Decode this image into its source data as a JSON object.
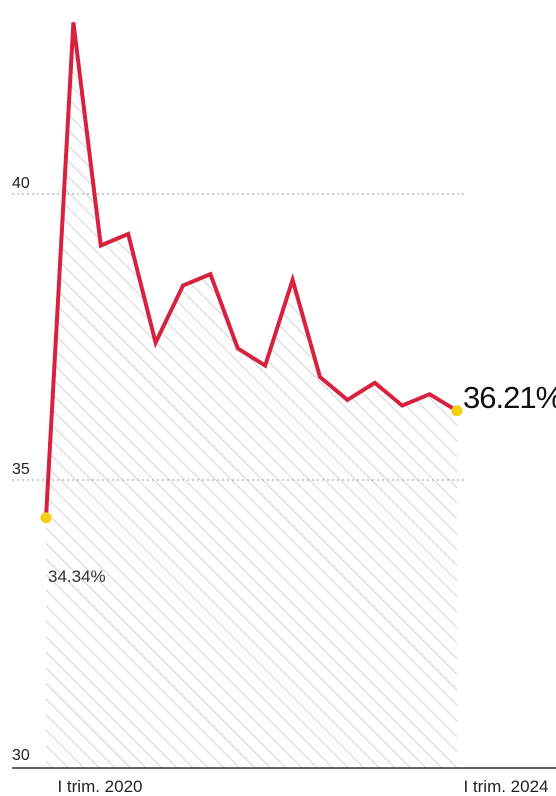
{
  "chart_data": {
    "type": "area",
    "x_start_label": "I trim. 2020",
    "x_end_label": "I trim. 2024",
    "y_ticks": [
      30,
      35,
      40
    ],
    "ylim": [
      30,
      43
    ],
    "values": [
      34.34,
      43.0,
      39.1,
      39.3,
      37.4,
      38.4,
      38.6,
      37.3,
      37.0,
      38.5,
      36.8,
      36.4,
      36.7,
      36.3,
      36.5,
      36.21
    ],
    "start_value_label": "34.34%",
    "end_value_label": "36.21%",
    "colors": {
      "line": "#d8213f",
      "endpoint": "#f6cf14",
      "hatch": "#b7b7b7",
      "grid": "#9a9a9a"
    }
  }
}
